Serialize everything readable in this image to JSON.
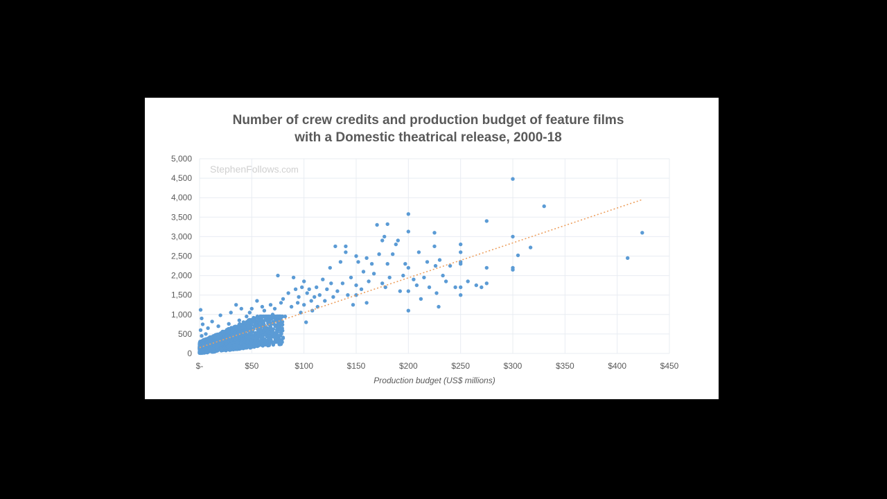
{
  "colors": {
    "background": "#000000",
    "panel": "#ffffff",
    "grid": "#e8ecf2",
    "point": "#5b9bd5",
    "trendline": "#ed9f5e",
    "text": "#595959",
    "watermark": "#d0d0d0"
  },
  "chart_data": {
    "type": "scatter",
    "title_lines": [
      "Number of crew credits and production budget of feature films",
      "with a Domestic theatrical release, 2000-18"
    ],
    "xlabel": "Production budget (US$ millions)",
    "ylabel": "",
    "watermark": {
      "main": "StephenFollows",
      "suffix": ".com"
    },
    "xlim": [
      0,
      450
    ],
    "ylim": [
      0,
      5000
    ],
    "x_ticks": [
      0,
      50,
      100,
      150,
      200,
      250,
      300,
      350,
      400,
      450
    ],
    "x_tick_labels": [
      "$-",
      "$50",
      "$100",
      "$150",
      "$200",
      "$250",
      "$300",
      "$350",
      "$400",
      "$450"
    ],
    "y_ticks": [
      0,
      500,
      1000,
      1500,
      2000,
      2500,
      3000,
      3500,
      4000,
      4500,
      5000
    ],
    "y_tick_labels": [
      "0",
      "500",
      "1,000",
      "1,500",
      "2,000",
      "2,500",
      "3,000",
      "3,500",
      "4,000",
      "4,500",
      "5,000"
    ],
    "grid": true,
    "trendline": {
      "type": "linear",
      "x": [
        0,
        424
      ],
      "y": [
        150,
        3950
      ]
    },
    "series": [
      {
        "name": "Films",
        "points": [
          [
            1,
            1120
          ],
          [
            2,
            900
          ],
          [
            3,
            750
          ],
          [
            1,
            600
          ],
          [
            2,
            450
          ],
          [
            4,
            350
          ],
          [
            3,
            250
          ],
          [
            5,
            150
          ],
          [
            2,
            80
          ],
          [
            6,
            500
          ],
          [
            8,
            650
          ],
          [
            10,
            400
          ],
          [
            12,
            820
          ],
          [
            15,
            300
          ],
          [
            18,
            700
          ],
          [
            20,
            980
          ],
          [
            22,
            550
          ],
          [
            25,
            420
          ],
          [
            28,
            760
          ],
          [
            30,
            1050
          ],
          [
            32,
            600
          ],
          [
            35,
            1250
          ],
          [
            38,
            850
          ],
          [
            40,
            1150
          ],
          [
            42,
            700
          ],
          [
            45,
            950
          ],
          [
            48,
            1050
          ],
          [
            50,
            1150
          ],
          [
            52,
            800
          ],
          [
            55,
            1350
          ],
          [
            58,
            950
          ],
          [
            60,
            1200
          ],
          [
            62,
            1100
          ],
          [
            65,
            850
          ],
          [
            68,
            1250
          ],
          [
            70,
            1000
          ],
          [
            72,
            1150
          ],
          [
            75,
            2000
          ],
          [
            78,
            1300
          ],
          [
            80,
            1400
          ],
          [
            82,
            950
          ],
          [
            85,
            1550
          ],
          [
            88,
            1200
          ],
          [
            90,
            1950
          ],
          [
            92,
            1650
          ],
          [
            94,
            1300
          ],
          [
            95,
            1450
          ],
          [
            97,
            1050
          ],
          [
            98,
            1700
          ],
          [
            100,
            1850
          ],
          [
            100,
            1250
          ],
          [
            102,
            800
          ],
          [
            103,
            1550
          ],
          [
            105,
            1650
          ],
          [
            107,
            1350
          ],
          [
            108,
            1100
          ],
          [
            110,
            1450
          ],
          [
            112,
            1700
          ],
          [
            113,
            1200
          ],
          [
            115,
            1500
          ],
          [
            118,
            1900
          ],
          [
            120,
            1350
          ],
          [
            122,
            1650
          ],
          [
            125,
            2200
          ],
          [
            126,
            1800
          ],
          [
            128,
            1450
          ],
          [
            130,
            2750
          ],
          [
            132,
            1600
          ],
          [
            135,
            2350
          ],
          [
            137,
            1800
          ],
          [
            140,
            2750
          ],
          [
            140,
            2600
          ],
          [
            142,
            1500
          ],
          [
            145,
            1950
          ],
          [
            147,
            1250
          ],
          [
            150,
            2500
          ],
          [
            150,
            1750
          ],
          [
            150,
            1500
          ],
          [
            152,
            2350
          ],
          [
            155,
            1650
          ],
          [
            157,
            2100
          ],
          [
            160,
            2450
          ],
          [
            160,
            1300
          ],
          [
            162,
            1850
          ],
          [
            165,
            2300
          ],
          [
            167,
            2050
          ],
          [
            170,
            3300
          ],
          [
            172,
            2550
          ],
          [
            175,
            1800
          ],
          [
            175,
            2900
          ],
          [
            177,
            3000
          ],
          [
            178,
            1700
          ],
          [
            180,
            3320
          ],
          [
            180,
            2300
          ],
          [
            182,
            1950
          ],
          [
            185,
            2550
          ],
          [
            188,
            2800
          ],
          [
            190,
            2900
          ],
          [
            192,
            1600
          ],
          [
            195,
            2000
          ],
          [
            197,
            2300
          ],
          [
            200,
            3580
          ],
          [
            200,
            3130
          ],
          [
            200,
            2200
          ],
          [
            200,
            1600
          ],
          [
            200,
            1100
          ],
          [
            205,
            1900
          ],
          [
            208,
            1750
          ],
          [
            210,
            2600
          ],
          [
            212,
            1400
          ],
          [
            215,
            1950
          ],
          [
            218,
            2350
          ],
          [
            220,
            1700
          ],
          [
            225,
            3100
          ],
          [
            225,
            2750
          ],
          [
            226,
            2250
          ],
          [
            227,
            1550
          ],
          [
            229,
            1200
          ],
          [
            230,
            2400
          ],
          [
            233,
            2000
          ],
          [
            236,
            1850
          ],
          [
            240,
            2250
          ],
          [
            245,
            1700
          ],
          [
            250,
            2800
          ],
          [
            250,
            2600
          ],
          [
            250,
            2350
          ],
          [
            250,
            2300
          ],
          [
            250,
            1700
          ],
          [
            250,
            1500
          ],
          [
            257,
            1850
          ],
          [
            265,
            1750
          ],
          [
            270,
            1700
          ],
          [
            275,
            3400
          ],
          [
            275,
            2200
          ],
          [
            275,
            1800
          ],
          [
            300,
            4480
          ],
          [
            300,
            3000
          ],
          [
            300,
            2200
          ],
          [
            300,
            2150
          ],
          [
            305,
            2520
          ],
          [
            317,
            2720
          ],
          [
            330,
            3780
          ],
          [
            410,
            2450
          ],
          [
            424,
            3100
          ]
        ],
        "dense_cluster": {
          "x": [
            0,
            80
          ],
          "y": [
            0,
            950
          ],
          "count": 1400
        }
      }
    ]
  }
}
